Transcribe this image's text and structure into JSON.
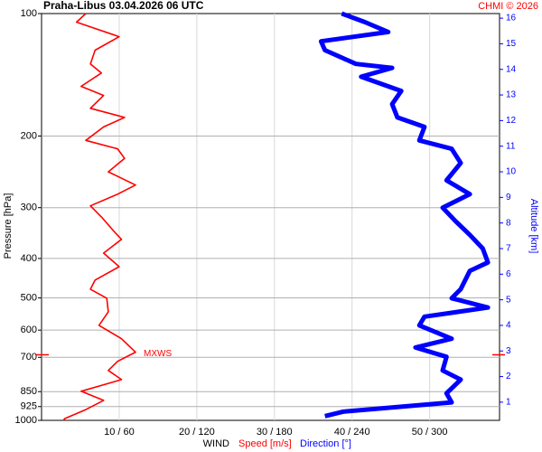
{
  "chart_data": {
    "type": "line",
    "title": "Praha-Libus    03.04.2026 06 UTC",
    "credit": "CHMI © 2026",
    "y_label": "Pressure [hPa]",
    "y2_label": "Altitude [km]",
    "x_label": "WIND",
    "x_label_speed": "Speed [m/s]",
    "x_label_direction": "Direction [°]",
    "log_y": true,
    "grid": true,
    "ylim": [
      100,
      1000
    ],
    "yticks": [
      100,
      200,
      300,
      400,
      500,
      600,
      700,
      850,
      925,
      1000
    ],
    "y2lim": [
      0.29,
      16.18
    ],
    "y2ticks": [
      1,
      2,
      3,
      4,
      5,
      6,
      7,
      8,
      9,
      10,
      11,
      12,
      13,
      14,
      15,
      16
    ],
    "xlim": [
      0,
      59
    ],
    "x2lim": [
      0,
      354
    ],
    "xticks": [
      {
        "value": 10,
        "label": "10 / 60"
      },
      {
        "value": 20,
        "label": "20 / 120"
      },
      {
        "value": 30,
        "label": "30 / 180"
      },
      {
        "value": 40,
        "label": "40 / 240"
      },
      {
        "value": 50,
        "label": "50 / 300"
      }
    ],
    "annotation": {
      "text": "MXWS",
      "pressure": 690
    },
    "series": [
      {
        "name": "Speed [m/s]",
        "color": "#ff0000",
        "pressure": [
          100,
          105,
          114,
          123,
          133,
          140,
          151,
          159,
          171,
          180,
          190,
          205,
          215,
          227,
          245,
          264,
          278,
          297,
          316,
          341,
          359,
          388,
          419,
          452,
          476,
          501,
          541,
          584,
          630,
          680,
          716,
          754,
          794,
          848,
          893,
          941,
          990,
          1000
        ],
        "values": [
          5.7,
          4.5,
          10,
          6.9,
          6.3,
          7.7,
          5.1,
          8.0,
          6.3,
          10.7,
          8.0,
          5.7,
          9.8,
          10.7,
          8.6,
          12.1,
          9.8,
          6.3,
          7.7,
          9.2,
          10.3,
          8.0,
          10.0,
          6.9,
          6.3,
          8.4,
          8.6,
          7.4,
          10.3,
          12.1,
          9.8,
          8.6,
          10.3,
          5.1,
          8.0,
          5.7,
          3.0,
          2.8
        ]
      },
      {
        "name": "Direction [°]",
        "color": "#0000ff",
        "axis": "x2",
        "pressure": [
          100,
          105,
          111,
          117,
          123,
          133,
          136,
          143,
          155,
          167,
          180,
          190,
          205,
          215,
          233,
          257,
          278,
          300,
          324,
          350,
          378,
          409,
          429,
          476,
          501,
          528,
          556,
          584,
          630,
          662,
          698,
          754,
          794,
          858,
          903,
          952,
          976
        ],
        "values": [
          232,
          250,
          268,
          216,
          219,
          243,
          271,
          247,
          278,
          271,
          275,
          296,
          292,
          317,
          324,
          313,
          331,
          310,
          320,
          331,
          341,
          345,
          331,
          324,
          317,
          345,
          296,
          292,
          317,
          289,
          313,
          310,
          324,
          313,
          317,
          233,
          219
        ]
      }
    ]
  }
}
